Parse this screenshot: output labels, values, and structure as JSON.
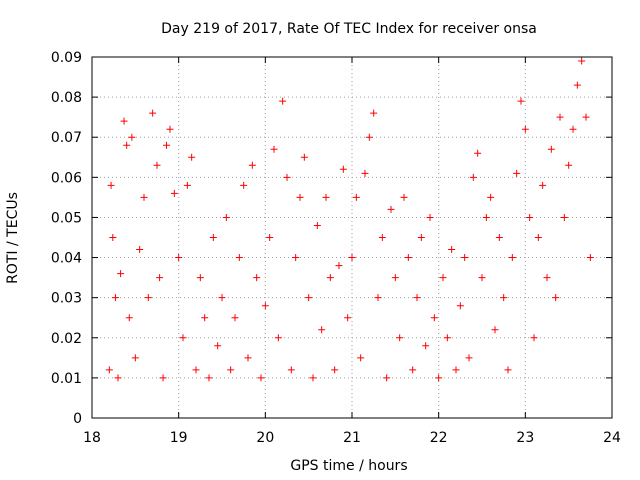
{
  "chart_data": {
    "type": "scatter",
    "title": "Day 219 of 2017, Rate Of TEC Index for receiver onsa",
    "xlabel": "GPS time / hours",
    "ylabel": "ROTI / TECUs",
    "xlim": [
      18,
      24
    ],
    "ylim": [
      0,
      0.09
    ],
    "x_ticks": [
      "18",
      "19",
      "20",
      "21",
      "22",
      "23",
      "24"
    ],
    "y_ticks": [
      "0",
      "0.01",
      "0.02",
      "0.03",
      "0.04",
      "0.05",
      "0.06",
      "0.07",
      "0.08",
      "0.09"
    ],
    "grid": true,
    "marker": "plus",
    "color": "#ff0000",
    "series": [
      {
        "name": "",
        "x": [
          18.2,
          18.22,
          18.24,
          18.27,
          18.3,
          18.33,
          18.37,
          18.4,
          18.43,
          18.46,
          18.5,
          18.55,
          18.6,
          18.65,
          18.7,
          18.75,
          18.78,
          18.82,
          18.86,
          18.9,
          18.95,
          19.0,
          19.05,
          19.1,
          19.15,
          19.2,
          19.25,
          19.3,
          19.35,
          19.4,
          19.45,
          19.5,
          19.55,
          19.6,
          19.65,
          19.7,
          19.75,
          19.8,
          19.85,
          19.9,
          19.95,
          20.0,
          20.05,
          20.1,
          20.15,
          20.2,
          20.25,
          20.3,
          20.35,
          20.4,
          20.45,
          20.5,
          20.55,
          20.6,
          20.65,
          20.7,
          20.75,
          20.8,
          20.85,
          20.9,
          20.95,
          21.0,
          21.05,
          21.1,
          21.15,
          21.2,
          21.25,
          21.3,
          21.35,
          21.4,
          21.45,
          21.5,
          21.55,
          21.6,
          21.65,
          21.7,
          21.75,
          21.8,
          21.85,
          21.9,
          21.95,
          22.0,
          22.05,
          22.1,
          22.15,
          22.2,
          22.25,
          22.3,
          22.35,
          22.4,
          22.45,
          22.5,
          22.55,
          22.6,
          22.65,
          22.7,
          22.75,
          22.8,
          22.85,
          22.9,
          22.95,
          23.0,
          23.05,
          23.1,
          23.15,
          23.2,
          23.25,
          23.3,
          23.35,
          23.4,
          23.45,
          23.5,
          23.55,
          23.6,
          23.65,
          23.7,
          23.75
        ],
        "y": [
          0.012,
          0.058,
          0.045,
          0.03,
          0.01,
          0.036,
          0.074,
          0.068,
          0.025,
          0.07,
          0.015,
          0.042,
          0.055,
          0.03,
          0.076,
          0.063,
          0.035,
          0.01,
          0.068,
          0.072,
          0.056,
          0.04,
          0.02,
          0.058,
          0.065,
          0.012,
          0.035,
          0.025,
          0.01,
          0.045,
          0.018,
          0.03,
          0.05,
          0.012,
          0.025,
          0.04,
          0.058,
          0.015,
          0.063,
          0.035,
          0.01,
          0.028,
          0.045,
          0.067,
          0.02,
          0.079,
          0.06,
          0.012,
          0.04,
          0.055,
          0.065,
          0.03,
          0.01,
          0.048,
          0.022,
          0.055,
          0.035,
          0.012,
          0.038,
          0.062,
          0.025,
          0.04,
          0.055,
          0.015,
          0.061,
          0.07,
          0.076,
          0.03,
          0.045,
          0.01,
          0.052,
          0.035,
          0.02,
          0.055,
          0.04,
          0.012,
          0.03,
          0.045,
          0.018,
          0.05,
          0.025,
          0.01,
          0.035,
          0.02,
          0.042,
          0.012,
          0.028,
          0.04,
          0.015,
          0.06,
          0.066,
          0.035,
          0.05,
          0.055,
          0.022,
          0.045,
          0.03,
          0.012,
          0.04,
          0.061,
          0.079,
          0.072,
          0.05,
          0.02,
          0.045,
          0.058,
          0.035,
          0.067,
          0.03,
          0.075,
          0.05,
          0.063,
          0.072,
          0.083,
          0.089,
          0.075,
          0.04
        ]
      }
    ]
  }
}
